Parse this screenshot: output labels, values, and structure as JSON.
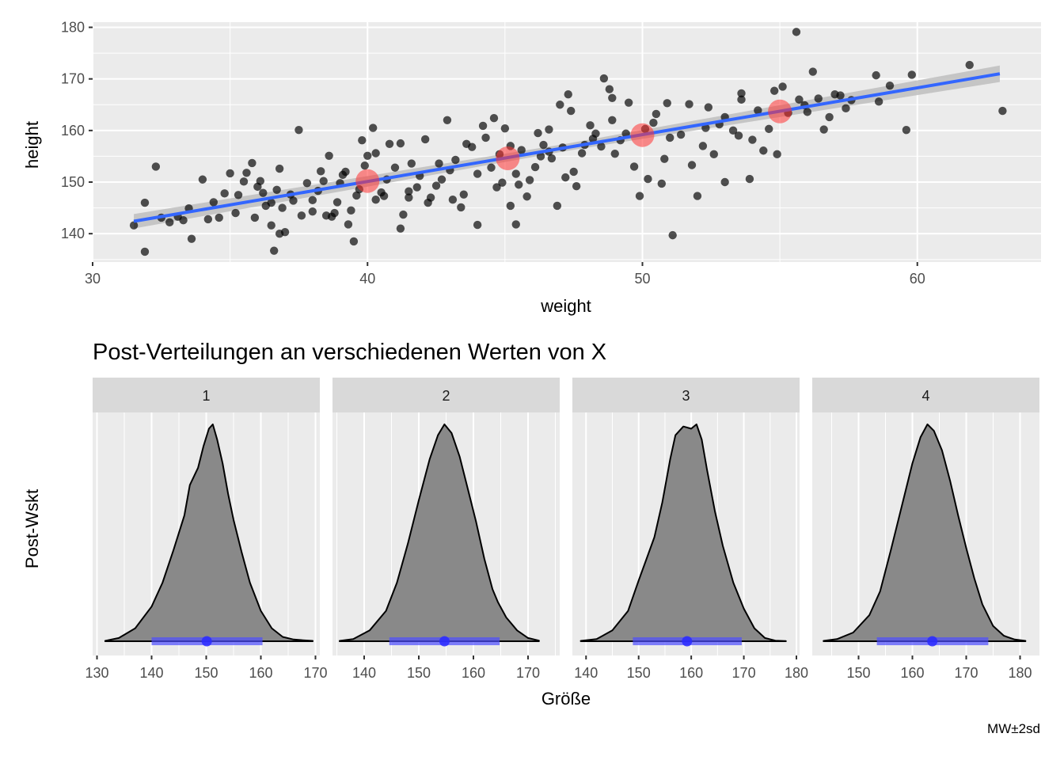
{
  "chart_data": [
    {
      "type": "scatter",
      "title": "",
      "xlabel": "weight",
      "ylabel": "height",
      "xlim": [
        30,
        64.5
      ],
      "ylim": [
        134.5,
        181
      ],
      "x_ticks": [
        30,
        40,
        50,
        60
      ],
      "x_tick_labels": [
        "30",
        "40",
        "50",
        "60"
      ],
      "y_ticks": [
        140,
        150,
        160,
        170,
        180
      ],
      "y_tick_labels": [
        "140",
        "150",
        "160",
        "170",
        "180"
      ],
      "grid": true,
      "colors": {
        "points": "#000000",
        "fit_line": "#3366ff",
        "ci_band": "#bebebe",
        "highlight": "#ff3333"
      },
      "points": [
        [
          31.5,
          141.6
        ],
        [
          31.9,
          136.5
        ],
        [
          31.9,
          146
        ],
        [
          32.3,
          153
        ],
        [
          32.8,
          142.2
        ],
        [
          33.1,
          143.3
        ],
        [
          33.6,
          139
        ],
        [
          33.5,
          144.9
        ],
        [
          34.0,
          150.5
        ],
        [
          34.4,
          146.1
        ],
        [
          34.6,
          143.1
        ],
        [
          35.0,
          151.7
        ],
        [
          35.5,
          150.1
        ],
        [
          35.6,
          151.8
        ],
        [
          35.8,
          153.7
        ],
        [
          35.9,
          143.1
        ],
        [
          36.3,
          145.4
        ],
        [
          36.1,
          150.2
        ],
        [
          36.2,
          147.9
        ],
        [
          36.5,
          141.6
        ],
        [
          36.6,
          136.7
        ],
        [
          36.7,
          148.5
        ],
        [
          36.8,
          152.6
        ],
        [
          37.0,
          140.3
        ],
        [
          37.3,
          146.4
        ],
        [
          37.5,
          160.1
        ],
        [
          38.0,
          144.3
        ],
        [
          38.2,
          148.3
        ],
        [
          38.4,
          150.2
        ],
        [
          38.6,
          155.1
        ],
        [
          38.7,
          143.3
        ],
        [
          38.9,
          146.1
        ],
        [
          39.1,
          151.4
        ],
        [
          39.3,
          141.8
        ],
        [
          39.6,
          147.4
        ],
        [
          39.5,
          138.5
        ],
        [
          39.8,
          158.1
        ],
        [
          39.9,
          153.2
        ],
        [
          40.2,
          160.5
        ],
        [
          40.3,
          155.6
        ],
        [
          40.5,
          148.0
        ],
        [
          40.8,
          157.4
        ],
        [
          41.0,
          152.8
        ],
        [
          41.2,
          141.0
        ],
        [
          41.5,
          147.0
        ],
        [
          41.6,
          153.6
        ],
        [
          41.9,
          151.2
        ],
        [
          42.2,
          146.0
        ],
        [
          42.5,
          149.3
        ],
        [
          42.9,
          162.0
        ],
        [
          43.2,
          154.3
        ],
        [
          43.4,
          145.1
        ],
        [
          43.6,
          157.4
        ],
        [
          44.0,
          141.7
        ],
        [
          44.0,
          151.6
        ],
        [
          44.3,
          158.6
        ],
        [
          44.6,
          162.4
        ],
        [
          44.9,
          149.9
        ],
        [
          45.2,
          145.4
        ],
        [
          45.4,
          141.8
        ],
        [
          45.6,
          156.2
        ],
        [
          45.9,
          150.4
        ],
        [
          46.2,
          159.5
        ],
        [
          46.6,
          155.9
        ],
        [
          46.9,
          145.4
        ],
        [
          47.2,
          150.9
        ],
        [
          47.4,
          163.8
        ],
        [
          47.6,
          149.2
        ],
        [
          47.9,
          157.2
        ],
        [
          48.3,
          159.4
        ],
        [
          48.6,
          170.1
        ],
        [
          48.9,
          162.0
        ],
        [
          49.2,
          158.1
        ],
        [
          49.5,
          165.4
        ],
        [
          49.9,
          147.3
        ],
        [
          50.2,
          150.6
        ],
        [
          50.5,
          163.2
        ],
        [
          50.8,
          154.5
        ],
        [
          51.1,
          139.7
        ],
        [
          51.4,
          159.2
        ],
        [
          51.7,
          165.1
        ],
        [
          52.0,
          147.3
        ],
        [
          52.3,
          160.5
        ],
        [
          52.6,
          155.4
        ],
        [
          53.0,
          150.0
        ],
        [
          53.3,
          160.0
        ],
        [
          53.6,
          167.2
        ],
        [
          53.9,
          150.6
        ],
        [
          54.2,
          163.9
        ],
        [
          54.6,
          160.3
        ],
        [
          54.9,
          155.4
        ],
        [
          55.1,
          168.5
        ],
        [
          55.6,
          179.1
        ],
        [
          55.9,
          164.9
        ],
        [
          56.2,
          171.4
        ],
        [
          56.6,
          160.2
        ],
        [
          57.0,
          167.0
        ],
        [
          57.6,
          165.9
        ],
        [
          58.5,
          170.7
        ],
        [
          59.0,
          168.7
        ],
        [
          59.6,
          160.1
        ],
        [
          59.8,
          170.8
        ],
        [
          61.9,
          172.7
        ],
        [
          63.1,
          163.8
        ],
        [
          45.5,
          149.5
        ],
        [
          47.5,
          152.0
        ],
        [
          49.0,
          155.5
        ],
        [
          52.2,
          157.0
        ],
        [
          43.0,
          152.3
        ],
        [
          41.8,
          149.0
        ],
        [
          38.0,
          146.5
        ],
        [
          36.9,
          145.0
        ],
        [
          34.8,
          147.8
        ],
        [
          35.3,
          147.5
        ],
        [
          46.7,
          154.6
        ],
        [
          48.1,
          161.0
        ],
        [
          50.4,
          161.5
        ],
        [
          55.3,
          163.4
        ],
        [
          56.4,
          166.2
        ],
        [
          53.0,
          162.6
        ],
        [
          44.8,
          155.4
        ],
        [
          42.7,
          150.5
        ],
        [
          40.7,
          150.5
        ],
        [
          39.0,
          149.8
        ],
        [
          37.8,
          149.8
        ],
        [
          47.0,
          165.0
        ],
        [
          48.8,
          168.0
        ],
        [
          50.1,
          160.3
        ],
        [
          51.0,
          158.6
        ],
        [
          52.8,
          161.2
        ],
        [
          43.8,
          156.8
        ],
        [
          45.0,
          160.4
        ],
        [
          46.4,
          157.2
        ],
        [
          49.7,
          153.0
        ],
        [
          54.0,
          158.2
        ],
        [
          40.3,
          146.6
        ],
        [
          42.1,
          158.3
        ],
        [
          41.3,
          143.7
        ],
        [
          38.5,
          143.5
        ],
        [
          39.4,
          144.5
        ],
        [
          37.2,
          147.6
        ],
        [
          36.0,
          149.1
        ],
        [
          33.3,
          142.6
        ],
        [
          32.5,
          143.1
        ],
        [
          44.5,
          152.8
        ],
        [
          43.5,
          147.6
        ],
        [
          45.8,
          147.2
        ],
        [
          47.8,
          155.6
        ],
        [
          46.1,
          152.9
        ],
        [
          48.5,
          156.9
        ],
        [
          50.7,
          149.7
        ],
        [
          51.8,
          153.3
        ],
        [
          53.5,
          159.0
        ],
        [
          54.4,
          156.1
        ],
        [
          55.7,
          166.0
        ],
        [
          56.8,
          162.6
        ],
        [
          57.2,
          166.8
        ],
        [
          58.6,
          165.6
        ],
        [
          48.9,
          166.3
        ],
        [
          47.3,
          167.0
        ],
        [
          46.6,
          160.2
        ],
        [
          45.2,
          157.0
        ],
        [
          44.2,
          160.9
        ],
        [
          42.6,
          153.6
        ],
        [
          41.2,
          157.5
        ],
        [
          40.0,
          155.1
        ],
        [
          39.2,
          152.0
        ],
        [
          38.3,
          152.1
        ],
        [
          36.5,
          146.0
        ],
        [
          35.2,
          144.0
        ],
        [
          34.2,
          142.8
        ],
        [
          52.4,
          164.5
        ],
        [
          53.6,
          166.0
        ],
        [
          54.8,
          167.7
        ],
        [
          56.0,
          163.6
        ],
        [
          57.4,
          164.3
        ],
        [
          50.9,
          165.3
        ],
        [
          49.4,
          159.4
        ],
        [
          48.2,
          158.4
        ],
        [
          47.1,
          156.7
        ],
        [
          46.3,
          155.0
        ],
        [
          45.4,
          151.6
        ],
        [
          44.7,
          149.0
        ],
        [
          43.1,
          146.6
        ],
        [
          42.3,
          147.0
        ],
        [
          41.5,
          148.2
        ],
        [
          40.6,
          147.3
        ],
        [
          39.7,
          148.6
        ],
        [
          38.8,
          144.0
        ],
        [
          37.6,
          143.5
        ],
        [
          36.8,
          140.0
        ]
      ],
      "fit_line": [
        [
          31.5,
          142.4
        ],
        [
          63.0,
          171.0
        ]
      ],
      "ci_band": [
        [
          31.5,
          141.0,
          143.8
        ],
        [
          47.2,
          156.0,
          157.4
        ],
        [
          63.0,
          169.4,
          172.6
        ]
      ],
      "highlight_points": [
        [
          40,
          150.2
        ],
        [
          45.1,
          154.6
        ],
        [
          50,
          159.1
        ],
        [
          55,
          163.7
        ]
      ]
    },
    {
      "type": "area",
      "title": "Post-Verteilungen an verschiedenen Werten von X",
      "xlabel": "Größe",
      "ylabel": "Post-Wskt",
      "caption": "MW±2sd",
      "colors": {
        "density_fill": "#898989",
        "interval": "#4d4dff",
        "mean_point": "#2a2aff",
        "strip": "#d9d9d9",
        "panel": "#ebebeb"
      },
      "panels": [
        {
          "strip": "1",
          "xlim": [
            129.2,
            170.8
          ],
          "x_ticks": [
            130,
            140,
            150,
            160,
            170
          ],
          "x_tick_labels": [
            "130",
            "140",
            "150",
            "160",
            "170"
          ],
          "mean": 150.1,
          "interval": [
            140.0,
            160.3
          ],
          "density": [
            [
              131.5,
              0.002
            ],
            [
              134,
              0.015
            ],
            [
              137,
              0.06
            ],
            [
              140,
              0.16
            ],
            [
              142,
              0.27
            ],
            [
              144,
              0.42
            ],
            [
              146,
              0.58
            ],
            [
              147,
              0.72
            ],
            [
              148.5,
              0.8
            ],
            [
              149.5,
              0.9
            ],
            [
              150.5,
              0.98
            ],
            [
              151.2,
              1.0
            ],
            [
              152,
              0.93
            ],
            [
              153,
              0.82
            ],
            [
              154,
              0.68
            ],
            [
              155,
              0.56
            ],
            [
              156.5,
              0.41
            ],
            [
              158,
              0.27
            ],
            [
              160,
              0.14
            ],
            [
              162,
              0.06
            ],
            [
              164,
              0.02
            ],
            [
              166,
              0.008
            ],
            [
              168,
              0.004
            ],
            [
              169.5,
              0.002
            ]
          ]
        },
        {
          "strip": "2",
          "xlim": [
            134.2,
            175.8
          ],
          "x_ticks": [
            140,
            150,
            160,
            170
          ],
          "x_tick_labels": [
            "140",
            "150",
            "160",
            "170"
          ],
          "mean": 154.7,
          "interval": [
            144.6,
            164.8
          ],
          "density": [
            [
              135.5,
              0.002
            ],
            [
              138,
              0.01
            ],
            [
              141,
              0.05
            ],
            [
              144,
              0.14
            ],
            [
              146,
              0.27
            ],
            [
              148,
              0.45
            ],
            [
              150,
              0.65
            ],
            [
              152,
              0.84
            ],
            [
              153.5,
              0.95
            ],
            [
              154.7,
              1.0
            ],
            [
              156,
              0.96
            ],
            [
              157.5,
              0.85
            ],
            [
              159,
              0.7
            ],
            [
              160.5,
              0.55
            ],
            [
              162,
              0.38
            ],
            [
              163.5,
              0.24
            ],
            [
              164.5,
              0.18
            ],
            [
              166,
              0.11
            ],
            [
              168,
              0.05
            ],
            [
              170,
              0.015
            ],
            [
              172,
              0.003
            ]
          ]
        },
        {
          "strip": "3",
          "xlim": [
            137.4,
            180.6
          ],
          "x_ticks": [
            140,
            150,
            160,
            170,
            180
          ],
          "x_tick_labels": [
            "140",
            "150",
            "160",
            "170",
            "180"
          ],
          "mean": 159.2,
          "interval": [
            148.9,
            169.6
          ],
          "density": [
            [
              139,
              0.002
            ],
            [
              142,
              0.01
            ],
            [
              145,
              0.05
            ],
            [
              148,
              0.14
            ],
            [
              150,
              0.28
            ],
            [
              151.5,
              0.38
            ],
            [
              153,
              0.48
            ],
            [
              154.5,
              0.64
            ],
            [
              156,
              0.84
            ],
            [
              157,
              0.95
            ],
            [
              158.5,
              0.99
            ],
            [
              160,
              0.98
            ],
            [
              161,
              1.0
            ],
            [
              162,
              0.93
            ],
            [
              163,
              0.79
            ],
            [
              164.5,
              0.6
            ],
            [
              166,
              0.44
            ],
            [
              168,
              0.27
            ],
            [
              170,
              0.15
            ],
            [
              172,
              0.06
            ],
            [
              174,
              0.015
            ],
            [
              176,
              0.003
            ],
            [
              178,
              0.001
            ]
          ]
        },
        {
          "strip": "4",
          "xlim": [
            141.4,
            183.6
          ],
          "x_ticks": [
            150,
            160,
            170,
            180
          ],
          "x_tick_labels": [
            "150",
            "160",
            "170",
            "180"
          ],
          "mean": 163.7,
          "interval": [
            153.4,
            174.1
          ],
          "density": [
            [
              143.5,
              0.002
            ],
            [
              146,
              0.01
            ],
            [
              149,
              0.04
            ],
            [
              152,
              0.12
            ],
            [
              154,
              0.23
            ],
            [
              156,
              0.42
            ],
            [
              158,
              0.62
            ],
            [
              160,
              0.82
            ],
            [
              161.5,
              0.94
            ],
            [
              162.8,
              1.0
            ],
            [
              164,
              0.97
            ],
            [
              165.5,
              0.88
            ],
            [
              167,
              0.74
            ],
            [
              168.5,
              0.58
            ],
            [
              170,
              0.43
            ],
            [
              171.5,
              0.29
            ],
            [
              173,
              0.17
            ],
            [
              175,
              0.07
            ],
            [
              177,
              0.025
            ],
            [
              179,
              0.008
            ],
            [
              181,
              0.002
            ]
          ]
        }
      ]
    }
  ]
}
